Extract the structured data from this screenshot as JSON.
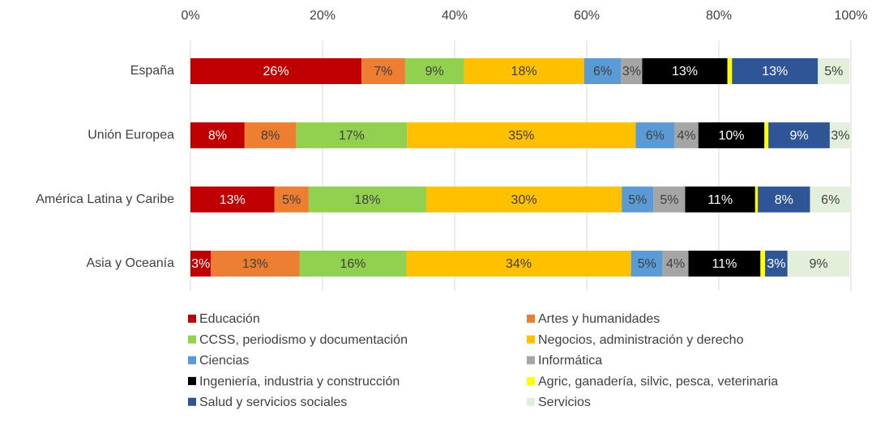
{
  "chart_data": {
    "type": "stacked-barh",
    "categories": [
      "España",
      "Unión Europea",
      "América Latina y Caribe",
      "Asia y Oceanía"
    ],
    "xlim": [
      0,
      100
    ],
    "xticks": [
      {
        "value": 0,
        "label": "0%"
      },
      {
        "value": 20,
        "label": "20%"
      },
      {
        "value": 40,
        "label": "40%"
      },
      {
        "value": 60,
        "label": "60%"
      },
      {
        "value": 80,
        "label": "80%"
      },
      {
        "value": 100,
        "label": "100%"
      }
    ],
    "grid": true,
    "legend": "bottom",
    "series": [
      {
        "name": "Educación",
        "color": "#c00000",
        "values": [
          25.9,
          8.2,
          12.7,
          3.1
        ],
        "value_labels": [
          "26%",
          "8%",
          "13%",
          "3%"
        ]
      },
      {
        "name": "Artes y humanidades",
        "color": "#ed7d31",
        "values": [
          6.6,
          7.8,
          5.2,
          13.4
        ],
        "value_labels": [
          "7%",
          "8%",
          "5%",
          "13%"
        ]
      },
      {
        "name": "CCSS, periodismo y documentación",
        "color": "#92d050",
        "values": [
          8.9,
          16.8,
          17.8,
          16.2
        ],
        "value_labels": [
          "9%",
          "17%",
          "18%",
          "16%"
        ]
      },
      {
        "name": "Negocios, administración y derecho",
        "color": "#ffc000",
        "values": [
          18.2,
          34.6,
          29.6,
          34.0
        ],
        "value_labels": [
          "18%",
          "35%",
          "30%",
          "34%"
        ]
      },
      {
        "name": "Ciencias",
        "color": "#5b9bd5",
        "values": [
          5.6,
          5.9,
          4.8,
          4.8
        ],
        "value_labels": [
          "6%",
          "6%",
          "5%",
          "5%"
        ]
      },
      {
        "name": "Informática",
        "color": "#a5a5a5",
        "values": [
          3.2,
          3.6,
          4.8,
          3.9
        ],
        "value_labels": [
          "3%",
          "4%",
          "5%",
          "4%"
        ]
      },
      {
        "name": "Ingeniería, industria y construcción",
        "color": "#000000",
        "values": [
          12.9,
          10.0,
          10.6,
          10.9
        ],
        "value_labels": [
          "13%",
          "10%",
          "11%",
          "11%"
        ]
      },
      {
        "name": "Agric, ganadería, silvic, pesca, veterinaria",
        "color": "#ffff00",
        "values": [
          0.7,
          0.6,
          0.4,
          0.7
        ]
      },
      {
        "name": "Salud y servicios sociales",
        "color": "#2f5597",
        "values": [
          13.0,
          9.3,
          7.9,
          3.4
        ],
        "value_labels": [
          "13%",
          "9%",
          "8%",
          "3%"
        ]
      },
      {
        "name": "Servicios",
        "color": "#e2efda",
        "values": [
          4.8,
          3.2,
          6.2,
          9.4
        ],
        "value_labels": [
          "5%",
          "3%",
          "6%",
          "9%"
        ]
      }
    ]
  }
}
